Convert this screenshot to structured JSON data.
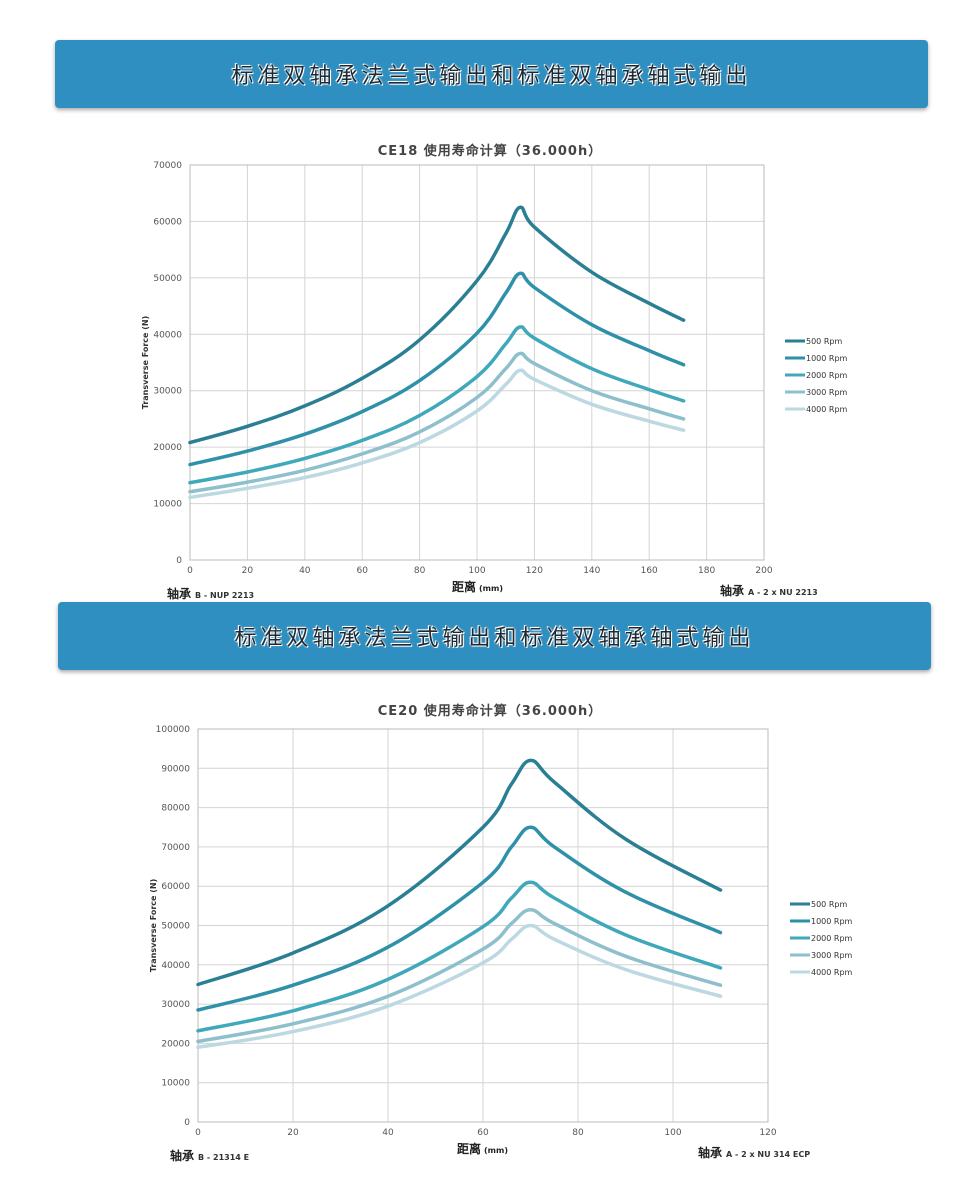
{
  "banners": [
    {
      "text": "标准双轴承法兰式输出和标准双轴承轴式输出"
    },
    {
      "text": "标准双轴承法兰式输出和标准双轴承轴式输出"
    }
  ],
  "charts": [
    {
      "bearing_b_label": "轴承",
      "bearing_b_value": "B - NUP 2213",
      "bearing_a_label": "轴承",
      "bearing_a_value": "A - 2 x NU 2213",
      "xlabel_main": "距离",
      "xlabel_unit": "(mm)"
    },
    {
      "bearing_b_label": "轴承",
      "bearing_b_value": "B - 21314 E",
      "bearing_a_label": "轴承",
      "bearing_a_value": "A - 2 x NU 314 ECP",
      "xlabel_main": "距离",
      "xlabel_unit": "(mm)"
    }
  ],
  "chart_data": [
    {
      "type": "line",
      "title": "CE18    使用寿命计算（36.000h）",
      "xlabel": "距离 (mm)",
      "ylabel": "Transverse Force (N)",
      "xlim": [
        0,
        200
      ],
      "ylim": [
        0,
        70000
      ],
      "xticks": [
        0,
        20,
        40,
        60,
        80,
        100,
        120,
        140,
        160,
        180,
        200
      ],
      "yticks": [
        0,
        10000,
        20000,
        30000,
        40000,
        50000,
        60000,
        70000
      ],
      "grid": true,
      "legend_position": "right",
      "series": [
        {
          "name": "500 Rpm",
          "color": "#2a7f95",
          "x": [
            0,
            20,
            40,
            60,
            80,
            100,
            110,
            115,
            120,
            140,
            160,
            172
          ],
          "y": [
            20800,
            23700,
            27300,
            32200,
            39000,
            49500,
            57800,
            62500,
            59000,
            51000,
            45500,
            42500
          ]
        },
        {
          "name": "1000 Rpm",
          "color": "#2e91a9",
          "x": [
            0,
            20,
            40,
            60,
            80,
            100,
            110,
            115,
            120,
            140,
            160,
            172
          ],
          "y": [
            16900,
            19300,
            22300,
            26300,
            31800,
            40200,
            47300,
            50800,
            48300,
            41700,
            37100,
            34600
          ]
        },
        {
          "name": "2000 Rpm",
          "color": "#3fa8bb",
          "x": [
            0,
            20,
            40,
            60,
            80,
            100,
            110,
            115,
            120,
            140,
            160,
            172
          ],
          "y": [
            13700,
            15600,
            18000,
            21200,
            25600,
            32500,
            38300,
            41300,
            39300,
            33900,
            30200,
            28200
          ]
        },
        {
          "name": "3000 Rpm",
          "color": "#8dbfcc",
          "x": [
            0,
            20,
            40,
            60,
            80,
            100,
            110,
            115,
            120,
            140,
            160,
            172
          ],
          "y": [
            12100,
            13800,
            15900,
            18800,
            22700,
            28800,
            33900,
            36600,
            34800,
            30000,
            26800,
            25000
          ]
        },
        {
          "name": "4000 Rpm",
          "color": "#bcd8e1",
          "x": [
            0,
            20,
            40,
            60,
            80,
            100,
            110,
            115,
            120,
            140,
            160,
            172
          ],
          "y": [
            11100,
            12700,
            14600,
            17200,
            20800,
            26400,
            31100,
            33600,
            32000,
            27600,
            24600,
            23000
          ]
        }
      ]
    },
    {
      "type": "line",
      "title": "CE20    使用寿命计算（36.000h）",
      "xlabel": "距离 (mm)",
      "ylabel": "Transverse Force (N)",
      "xlim": [
        0,
        120
      ],
      "ylim": [
        0,
        100000
      ],
      "xticks": [
        0,
        20,
        40,
        60,
        80,
        100,
        120
      ],
      "yticks": [
        0,
        10000,
        20000,
        30000,
        40000,
        50000,
        60000,
        70000,
        80000,
        90000,
        100000
      ],
      "grid": true,
      "legend_position": "right",
      "series": [
        {
          "name": "500 Rpm",
          "color": "#2a7f95",
          "x": [
            0,
            20,
            40,
            60,
            66,
            70,
            75,
            90,
            110
          ],
          "y": [
            35000,
            43000,
            55000,
            75000,
            86000,
            92000,
            86500,
            72000,
            59000
          ]
        },
        {
          "name": "1000 Rpm",
          "color": "#2e91a9",
          "x": [
            0,
            20,
            40,
            60,
            66,
            70,
            75,
            90,
            110
          ],
          "y": [
            28500,
            34800,
            44500,
            61000,
            70000,
            75000,
            70000,
            58500,
            48200
          ]
        },
        {
          "name": "2000 Rpm",
          "color": "#3fa8bb",
          "x": [
            0,
            20,
            40,
            60,
            66,
            70,
            75,
            90,
            110
          ],
          "y": [
            23200,
            28300,
            36300,
            49700,
            57000,
            61000,
            57000,
            47600,
            39200
          ]
        },
        {
          "name": "3000 Rpm",
          "color": "#8dbfcc",
          "x": [
            0,
            20,
            40,
            60,
            66,
            70,
            75,
            90,
            110
          ],
          "y": [
            20500,
            25000,
            32000,
            44000,
            50500,
            54000,
            50500,
            42200,
            34800
          ]
        },
        {
          "name": "4000 Rpm",
          "color": "#bcd8e1",
          "x": [
            0,
            20,
            40,
            60,
            66,
            70,
            75,
            90,
            110
          ],
          "y": [
            19000,
            23000,
            29500,
            40500,
            46500,
            50000,
            46500,
            38800,
            32000
          ]
        }
      ]
    }
  ]
}
